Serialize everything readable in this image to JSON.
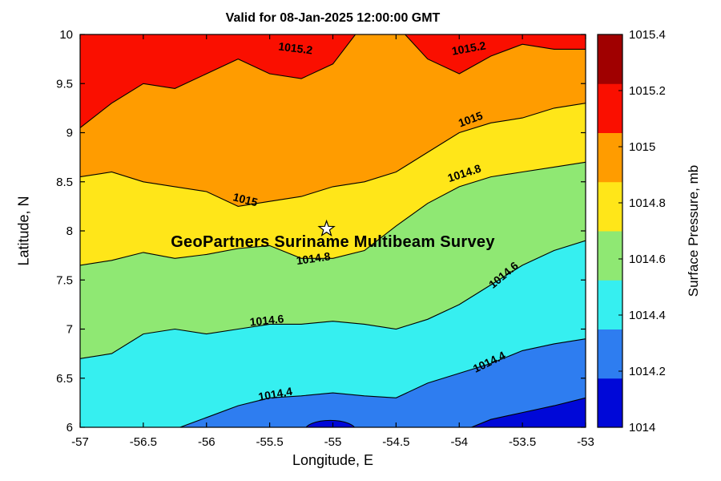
{
  "title": "Valid for 08-Jan-2025 12:00:00 GMT",
  "axes": {
    "xlabel": "Longitude, E",
    "ylabel": "Latitude, N",
    "xlim": [
      -57,
      -53
    ],
    "ylim": [
      6,
      10
    ],
    "xticks": {
      "values": [
        -57,
        -56.5,
        -56,
        -55.5,
        -55,
        -54.5,
        -54,
        -53.5,
        -53
      ],
      "labels": [
        "-57",
        "-56.5",
        "-56",
        "-55.5",
        "-55",
        "-54.5",
        "-54",
        "-53.5",
        "-53"
      ]
    },
    "yticks": {
      "values": [
        6,
        6.5,
        7,
        7.5,
        8,
        8.5,
        9,
        9.5,
        10
      ],
      "labels": [
        "6",
        "6.5",
        "7",
        "7.5",
        "8",
        "8.5",
        "9",
        "9.5",
        "10"
      ]
    }
  },
  "colorbar": {
    "label": "Surface Pressure, mb",
    "range": [
      1014,
      1015.4
    ],
    "colors": [
      "#0008D8",
      "#2E7DF0",
      "#36EFF0",
      "#8FE873",
      "#FFE619",
      "#FF9C00",
      "#FA0F00",
      "#A00000"
    ],
    "ticks": [
      {
        "value": 1014,
        "label": "1014"
      },
      {
        "value": 1014.2,
        "label": "1014.2"
      },
      {
        "value": 1014.4,
        "label": "1014.4"
      },
      {
        "value": 1014.6,
        "label": "1014.6"
      },
      {
        "value": 1014.8,
        "label": "1014.8"
      },
      {
        "value": 1015,
        "label": "1015"
      },
      {
        "value": 1015.2,
        "label": "1015.2"
      },
      {
        "value": 1015.4,
        "label": "1015.4"
      }
    ]
  },
  "annotation": {
    "text": "GeoPartners Suriname Multibeam Survey",
    "star": {
      "lon": -55.05,
      "lat": 8.02
    }
  },
  "chart_data": {
    "type": "filled_contour",
    "title": "Valid for 08-Jan-2025 12:00:00 GMT",
    "xlabel": "Longitude, E",
    "ylabel": "Latitude, N",
    "zlabel": "Surface Pressure, mb",
    "xlim": [
      -57,
      -53
    ],
    "ylim": [
      6,
      10
    ],
    "zrange": [
      1014,
      1015.4
    ],
    "base_color": "#0008D8",
    "lons": [
      -57,
      -56.75,
      -56.5,
      -56.25,
      -56,
      -55.75,
      -55.5,
      -55.25,
      -55,
      -54.75,
      -54.5,
      -54.25,
      -54,
      -53.75,
      -53.5,
      -53.25,
      -53
    ],
    "contours": [
      {
        "level": 1014.2,
        "color_above": "#2E7DF0",
        "lats": [
          5.5,
          5.5,
          5.5,
          5.5,
          5.5,
          5.5,
          5.5,
          5.5,
          5.5,
          5.5,
          5.55,
          5.78,
          5.95,
          6.08,
          6.15,
          6.22,
          6.3
        ]
      },
      {
        "level": 1014.4,
        "color_above": "#36EFF0",
        "lats": [
          5.8,
          5.85,
          5.9,
          5.98,
          6.1,
          6.22,
          6.3,
          6.32,
          6.35,
          6.32,
          6.3,
          6.45,
          6.55,
          6.65,
          6.78,
          6.85,
          6.9
        ]
      },
      {
        "level": 1014.6,
        "color_above": "#8FE873",
        "lats": [
          6.7,
          6.75,
          6.95,
          7.0,
          6.95,
          7.0,
          7.05,
          7.05,
          7.08,
          7.05,
          7.0,
          7.1,
          7.25,
          7.45,
          7.65,
          7.8,
          7.9
        ]
      },
      {
        "level": 1014.8,
        "color_above": "#FFE619",
        "lats": [
          7.65,
          7.7,
          7.78,
          7.72,
          7.76,
          7.82,
          7.85,
          7.72,
          7.72,
          7.8,
          8.05,
          8.28,
          8.45,
          8.55,
          8.6,
          8.65,
          8.7
        ]
      },
      {
        "level": 1015,
        "color_above": "#FF9C00",
        "lats": [
          8.55,
          8.6,
          8.5,
          8.45,
          8.4,
          8.25,
          8.3,
          8.35,
          8.45,
          8.5,
          8.6,
          8.8,
          9.0,
          9.1,
          9.15,
          9.25,
          9.3
        ]
      },
      {
        "level": 1015.2,
        "color_above": "#FA0F00",
        "lats": [
          9.05,
          9.3,
          9.5,
          9.45,
          9.6,
          9.75,
          9.6,
          9.55,
          9.7,
          10.12,
          10.1,
          9.75,
          9.6,
          9.78,
          9.9,
          9.85,
          9.85
        ]
      }
    ],
    "low_spot": {
      "lon": -55.02,
      "lat": 5.97,
      "rlon": 0.2,
      "rlat": 0.1,
      "color": "#0008D8"
    },
    "inline_labels": [
      {
        "text": "1015.2",
        "lon": -55.3,
        "lat": 9.82,
        "rot": 7
      },
      {
        "text": "1015.2",
        "lon": -53.92,
        "lat": 9.82,
        "rot": -10
      },
      {
        "text": "1015",
        "lon": -53.9,
        "lat": 9.1,
        "rot": -20
      },
      {
        "text": "1015",
        "lon": -55.7,
        "lat": 8.28,
        "rot": 14
      },
      {
        "text": "1014.8",
        "lon": -53.95,
        "lat": 8.55,
        "rot": -18
      },
      {
        "text": "1014.8",
        "lon": -55.15,
        "lat": 7.68,
        "rot": -8
      },
      {
        "text": "1014.6",
        "lon": -53.63,
        "lat": 7.52,
        "rot": -40
      },
      {
        "text": "1014.6",
        "lon": -55.52,
        "lat": 7.05,
        "rot": -6
      },
      {
        "text": "1014.4",
        "lon": -53.75,
        "lat": 6.63,
        "rot": -26
      },
      {
        "text": "1014.4",
        "lon": -55.45,
        "lat": 6.3,
        "rot": -10
      }
    ]
  }
}
